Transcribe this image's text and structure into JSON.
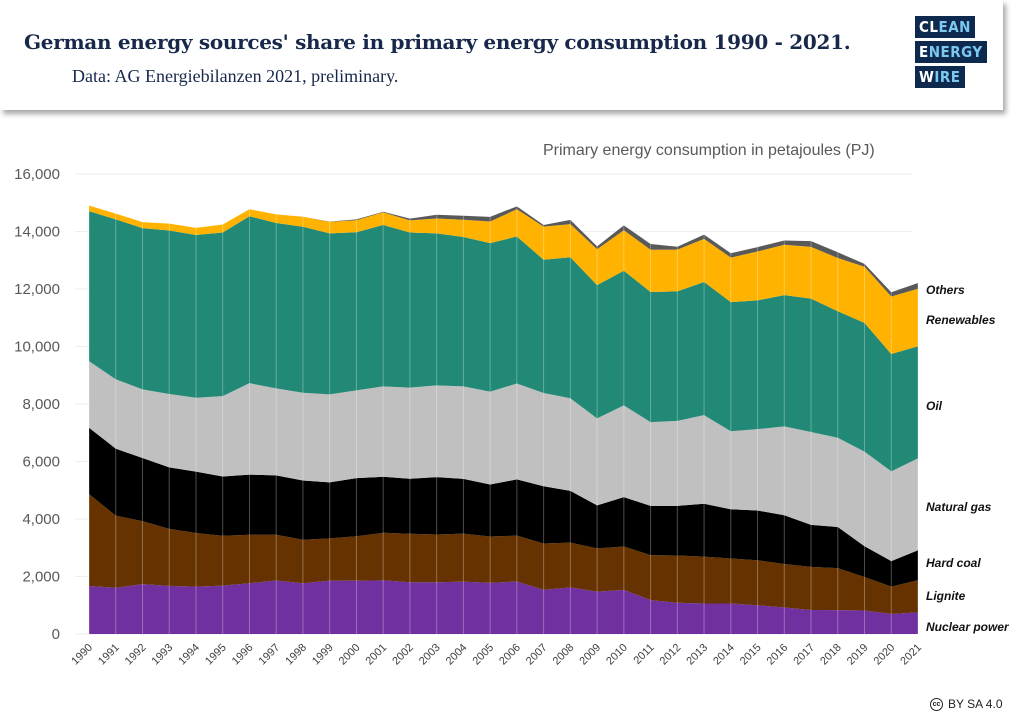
{
  "header": {
    "title": "German energy sources' share in primary energy consumption 1990 - 2021.",
    "subtitle": "Data: AG Energiebilanzen 2021, preliminary.",
    "logo": [
      "CLEAN",
      "ENERGY",
      "WIRE"
    ]
  },
  "license": "BY SA 4.0",
  "chart_data": {
    "type": "area",
    "stacked": true,
    "title": "German energy sources' share in primary energy consumption 1990 - 2021.",
    "ylabel": "Primary energy consumption in petajoules (PJ)",
    "ylim": [
      0,
      16000
    ],
    "yticks": [
      0,
      2000,
      4000,
      6000,
      8000,
      10000,
      12000,
      14000,
      16000
    ],
    "ytick_labels": [
      "0",
      "2,000",
      "4,000",
      "6,000",
      "8,000",
      "10,000",
      "12,000",
      "14,000",
      "16,000"
    ],
    "grid": true,
    "legend": "right (direct labels)",
    "x": [
      1990,
      1991,
      1992,
      1993,
      1994,
      1995,
      1996,
      1997,
      1998,
      1999,
      2000,
      2001,
      2002,
      2003,
      2004,
      2005,
      2006,
      2007,
      2008,
      2009,
      2010,
      2011,
      2012,
      2013,
      2014,
      2015,
      2016,
      2017,
      2018,
      2019,
      2020,
      2021
    ],
    "series": [
      {
        "name": "Nuclear power",
        "color": "#7030a0",
        "values": [
          1668,
          1609,
          1733,
          1675,
          1650,
          1682,
          1764,
          1859,
          1764,
          1855,
          1851,
          1868,
          1798,
          1801,
          1822,
          1779,
          1826,
          1533,
          1623,
          1472,
          1533,
          1178,
          1085,
          1061,
          1060,
          1001,
          923,
          833,
          829,
          819,
          697,
          754
        ]
      },
      {
        "name": "Lignite",
        "color": "#663300",
        "values": [
          3201,
          2507,
          2193,
          1980,
          1861,
          1735,
          1688,
          1595,
          1514,
          1473,
          1550,
          1652,
          1690,
          1660,
          1668,
          1611,
          1594,
          1616,
          1554,
          1507,
          1512,
          1564,
          1645,
          1629,
          1564,
          1565,
          1513,
          1500,
          1463,
          1164,
          951,
          1120
        ]
      },
      {
        "name": "Hard coal",
        "color": "#000000",
        "values": [
          2306,
          2330,
          2195,
          2139,
          2139,
          2060,
          2090,
          2065,
          2059,
          1948,
          2021,
          1949,
          1910,
          1997,
          1905,
          1808,
          1957,
          1988,
          1800,
          1496,
          1714,
          1715,
          1725,
          1840,
          1714,
          1730,
          1693,
          1464,
          1428,
          1070,
          887,
          1040
        ]
      },
      {
        "name": "Natural gas",
        "color": "#c0c0c0",
        "values": [
          2316,
          2414,
          2386,
          2552,
          2568,
          2799,
          3182,
          3024,
          3053,
          3058,
          3052,
          3144,
          3170,
          3188,
          3219,
          3233,
          3334,
          3245,
          3224,
          3024,
          3192,
          2914,
          2959,
          3082,
          2716,
          2828,
          3092,
          3229,
          3105,
          3292,
          3123,
          3200
        ]
      },
      {
        "name": "Oil",
        "color": "#218976",
        "values": [
          5217,
          5563,
          5609,
          5689,
          5660,
          5689,
          5808,
          5754,
          5775,
          5599,
          5499,
          5614,
          5398,
          5288,
          5195,
          5166,
          5115,
          4636,
          4904,
          4635,
          4684,
          4524,
          4505,
          4631,
          4489,
          4481,
          4566,
          4641,
          4402,
          4477,
          4079,
          3896
        ]
      },
      {
        "name": "Renewables",
        "color": "#ffb300",
        "values": [
          196,
          200,
          210,
          240,
          250,
          280,
          240,
          300,
          350,
          400,
          420,
          440,
          420,
          520,
          600,
          750,
          950,
          1150,
          1150,
          1250,
          1410,
          1470,
          1450,
          1500,
          1550,
          1700,
          1750,
          1800,
          1850,
          1950,
          2000,
          2000
        ]
      },
      {
        "name": "Others",
        "color": "#595959",
        "values": [
          0,
          0,
          0,
          0,
          0,
          0,
          0,
          0,
          0,
          10,
          30,
          20,
          60,
          130,
          140,
          160,
          100,
          60,
          150,
          100,
          170,
          200,
          100,
          150,
          150,
          150,
          150,
          200,
          200,
          100,
          150,
          200
        ]
      }
    ]
  }
}
